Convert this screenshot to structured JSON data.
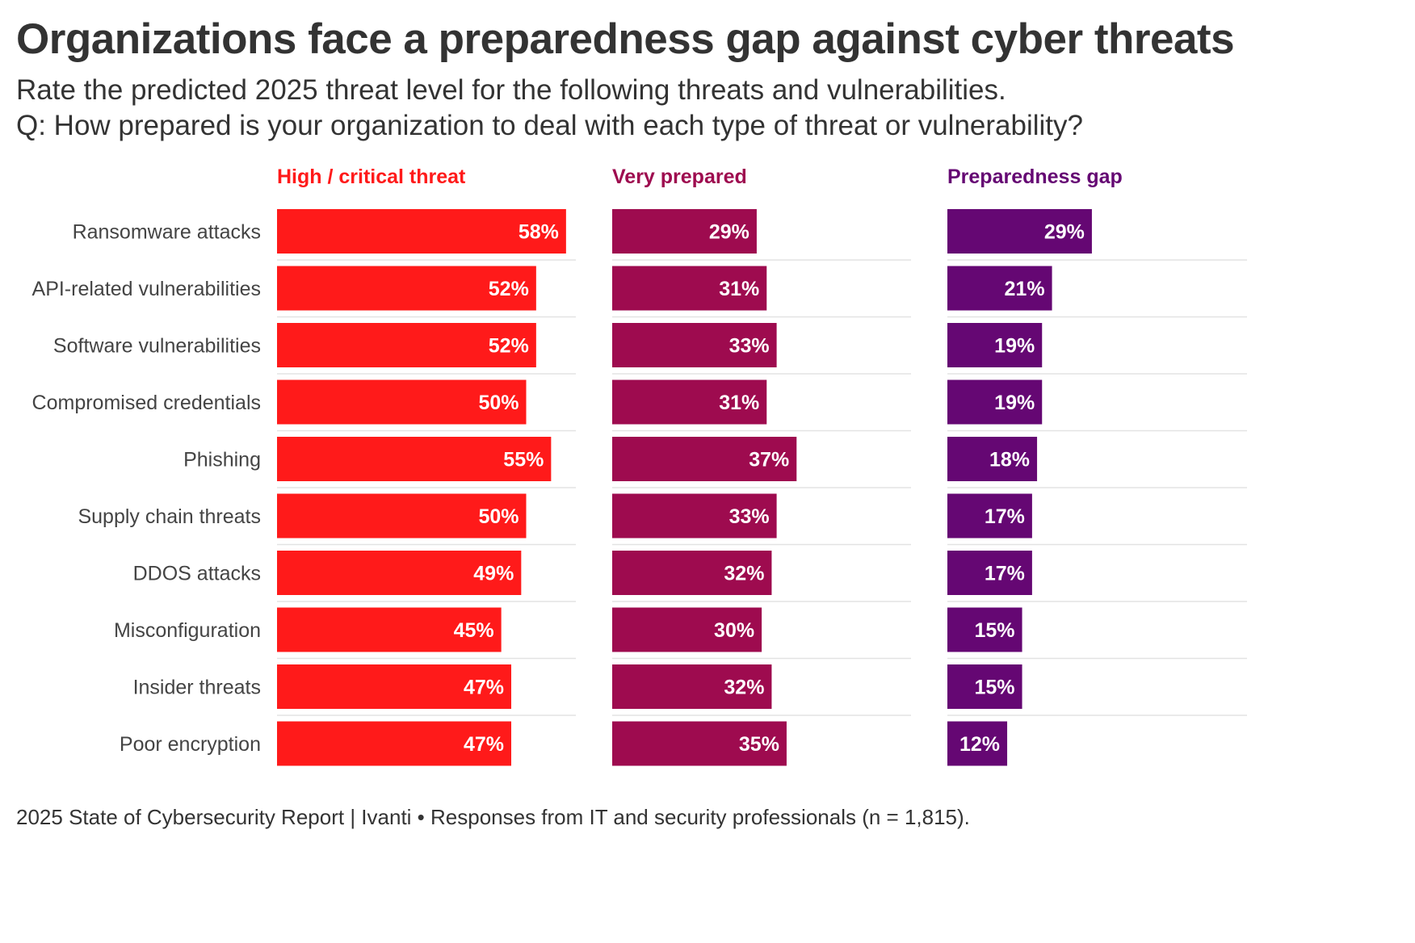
{
  "title": "Organizations face a preparedness gap against cyber threats",
  "subtitle_line1": "Rate the predicted 2025 threat level for the following threats and vulnerabilities.",
  "subtitle_line2": "Q: How prepared is your organization to deal with each type of threat or vulnerability?",
  "footer": "2025 State of Cybersecurity Report | Ivanti • Responses from IT and security professionals (n = 1,815).",
  "chart_data": {
    "type": "bar",
    "orientation": "horizontal",
    "categories": [
      "Ransomware attacks",
      "API-related vulnerabilities",
      "Software vulnerabilities",
      "Compromised credentials",
      "Phishing",
      "Supply chain threats",
      "DDOS attacks",
      "Misconfiguration",
      "Insider threats",
      "Poor encryption"
    ],
    "series": [
      {
        "name": "High / critical threat",
        "color": "#ff1a1a",
        "values": [
          58,
          52,
          52,
          50,
          55,
          50,
          49,
          45,
          47,
          47
        ],
        "labels": [
          "58%",
          "52%",
          "52%",
          "50%",
          "55%",
          "50%",
          "49%",
          "45%",
          "47%",
          "47%"
        ]
      },
      {
        "name": "Very prepared",
        "color": "#9e0b4f",
        "values": [
          29,
          31,
          33,
          31,
          37,
          33,
          32,
          30,
          32,
          35
        ],
        "labels": [
          "29%",
          "31%",
          "33%",
          "31%",
          "37%",
          "33%",
          "32%",
          "30%",
          "32%",
          "35%"
        ]
      },
      {
        "name": "Preparedness gap",
        "color": "#650773",
        "values": [
          29,
          21,
          19,
          19,
          18,
          17,
          17,
          15,
          15,
          12
        ],
        "labels": [
          "29%",
          "21%",
          "19%",
          "19%",
          "18%",
          "17%",
          "17%",
          "15%",
          "15%",
          "12%"
        ]
      }
    ],
    "xlim": [
      0,
      60
    ],
    "unit": "%"
  }
}
